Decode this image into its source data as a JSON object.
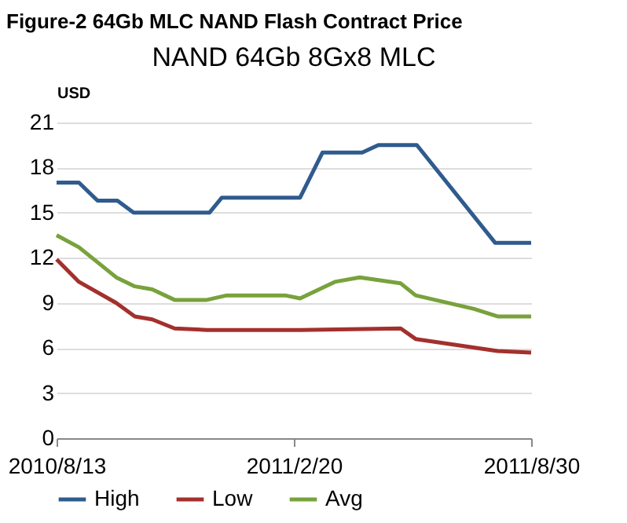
{
  "chart_data": {
    "type": "line",
    "title": "NAND 64Gb 8Gx8 MLC",
    "subtitle": "Figure-2 64Gb MLC NAND Flash Contract Price",
    "ylabel": "USD",
    "xlim": [
      "2010-08-13",
      "2011-08-30"
    ],
    "xticks": [
      {
        "value": "2010-08-13",
        "label": "2010/8/13"
      },
      {
        "value": "2011-02-20",
        "label": "2011/2/20"
      },
      {
        "value": "2011-08-30",
        "label": "2011/8/30"
      }
    ],
    "ylim": [
      0,
      21
    ],
    "yticks": [
      0,
      3,
      6,
      9,
      12,
      15,
      18,
      21
    ],
    "grid": "y",
    "legend": "bottom",
    "series": [
      {
        "name": "High",
        "color": "#2f5b8e",
        "x": [
          "2010-08-13",
          "2010-08-31",
          "2010-09-15",
          "2010-10-01",
          "2010-10-14",
          "2010-12-14",
          "2010-12-24",
          "2011-02-25",
          "2011-03-15",
          "2011-04-16",
          "2011-04-29",
          "2011-05-30",
          "2011-08-01",
          "2011-08-30"
        ],
        "values": [
          17,
          17,
          15.8,
          15.8,
          15,
          15,
          16,
          16,
          19,
          19,
          19.5,
          19.5,
          13,
          13
        ]
      },
      {
        "name": "Low",
        "color": "#a3302c",
        "x": [
          "2010-08-13",
          "2010-08-31",
          "2010-09-30",
          "2010-10-15",
          "2010-10-29",
          "2010-11-16",
          "2010-12-12",
          "2011-02-25",
          "2011-05-17",
          "2011-05-29",
          "2011-08-03",
          "2011-08-30"
        ],
        "values": [
          11.9,
          10.4,
          9.0,
          8.1,
          7.9,
          7.3,
          7.2,
          7.2,
          7.3,
          6.6,
          5.8,
          5.7
        ]
      },
      {
        "name": "Avg",
        "color": "#78a23c",
        "x": [
          "2010-08-13",
          "2010-08-31",
          "2010-09-30",
          "2010-10-15",
          "2010-10-29",
          "2010-11-16",
          "2010-12-12",
          "2010-12-28",
          "2011-02-13",
          "2011-02-25",
          "2011-03-25",
          "2011-04-14",
          "2011-05-17",
          "2011-05-29",
          "2011-07-15",
          "2011-08-03",
          "2011-08-30"
        ],
        "values": [
          13.5,
          12.7,
          10.7,
          10.1,
          9.9,
          9.2,
          9.2,
          9.5,
          9.5,
          9.3,
          10.4,
          10.7,
          10.3,
          9.5,
          8.6,
          8.1,
          8.1
        ]
      }
    ]
  }
}
